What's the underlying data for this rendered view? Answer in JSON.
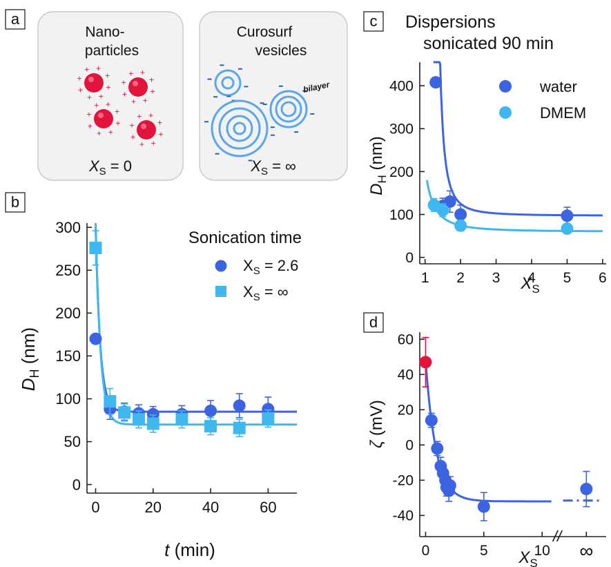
{
  "panel_labels": {
    "a": "a",
    "b": "b",
    "c": "c",
    "d": "d"
  },
  "panel_a": {
    "box1_title": [
      "Nano-",
      "particles"
    ],
    "box1_xs_label": "X",
    "box1_xs_sub": "S",
    "box1_xs_value": " = 0",
    "box2_title": [
      "Curosurf",
      "vesicles"
    ],
    "box2_bilayer": "bilayer",
    "box2_xs_label": "X",
    "box2_xs_sub": "S",
    "box2_xs_value": " = ∞",
    "colors": {
      "nanoparticle": "#e0143c",
      "charge_plus": "#e0143c",
      "vesicle": "#5aa6ea",
      "charge_minus": "#2a5fb0"
    }
  },
  "chart_data": [
    {
      "panel": "b",
      "type": "scatter",
      "legend_title": "Sonication time",
      "xlabel": "t (min)",
      "xlabel_italic": "t",
      "xlabel_unit": " (min)",
      "ylabel_main": "D",
      "ylabel_sub": "H",
      "ylabel_unit": " (nm)",
      "xlim": [
        -3,
        70
      ],
      "ylim": [
        -10,
        305
      ],
      "xticks": [
        0,
        20,
        40,
        60
      ],
      "yticks": [
        0,
        50,
        100,
        150,
        200,
        250,
        300
      ],
      "legend_position": "top-right",
      "series": [
        {
          "name": "X",
          "name_sub": "S",
          "name_value": " = 2.6",
          "marker": "circle",
          "color": "#3d64e0",
          "x": [
            0,
            5,
            10,
            15,
            20,
            30,
            40,
            50,
            60
          ],
          "y": [
            170,
            88,
            85,
            83,
            82,
            82,
            86,
            92,
            88
          ],
          "err": [
            5,
            12,
            10,
            10,
            9,
            10,
            12,
            14,
            14
          ],
          "fit": {
            "a": 85,
            "b": 215,
            "tau": 1.6
          }
        },
        {
          "name": "X",
          "name_sub": "S",
          "name_value": " = ∞",
          "marker": "square",
          "color": "#3fb8f0",
          "x": [
            0,
            5,
            10,
            15,
            20,
            30,
            40,
            50,
            60
          ],
          "y": [
            276,
            97,
            84,
            76,
            71,
            76,
            68,
            66,
            77
          ],
          "err": [
            20,
            15,
            10,
            10,
            10,
            10,
            10,
            10,
            10
          ],
          "fit": {
            "a": 70,
            "b": 235,
            "tau": 1.7
          }
        }
      ]
    },
    {
      "panel": "c",
      "type": "scatter",
      "title": [
        "Dispersions",
        "sonicated 90 min"
      ],
      "xlabel_main": "X",
      "xlabel_sub": "S",
      "ylabel_main": "D",
      "ylabel_sub": "H",
      "ylabel_unit": " (nm)",
      "xlim": [
        0.85,
        6.1
      ],
      "ylim": [
        -15,
        455
      ],
      "xticks": [
        1,
        2,
        3,
        4,
        5,
        6
      ],
      "yticks": [
        0,
        100,
        200,
        300,
        400
      ],
      "legend_position": "top-right",
      "series": [
        {
          "name": "water",
          "color": "#3d64e0",
          "x": [
            1.3,
            1.5,
            1.7,
            2.0,
            5.0
          ],
          "y": [
            408,
            120,
            130,
            100,
            97
          ],
          "err": [
            10,
            18,
            25,
            22,
            20
          ],
          "fit": {
            "a": 97,
            "b": 15,
            "x0": 1.2,
            "xs": 1.2
          }
        },
        {
          "name": "DMEM",
          "color": "#3fb8f0",
          "x": [
            1.25,
            1.5,
            2.0,
            5.0
          ],
          "y": [
            122,
            110,
            74,
            67
          ],
          "err": [
            15,
            15,
            12,
            8
          ],
          "fit": {
            "a": 60,
            "b": 30,
            "x0": 0.55,
            "xs": 1.0
          }
        }
      ]
    },
    {
      "panel": "d",
      "type": "scatter",
      "xlabel_main": "X",
      "xlabel_sub": "S",
      "ylabel_main": "ζ",
      "ylabel_unit": " (mV)",
      "xlim": [
        -0.5,
        15.5
      ],
      "ylim": [
        -52,
        64
      ],
      "xticks": [
        0,
        5,
        10
      ],
      "xtick_infinity": "∞",
      "break_mark": "//",
      "yticks": [
        -40,
        -20,
        0,
        20,
        40,
        60
      ],
      "series": [
        {
          "name": "",
          "color": "#3d64e0",
          "x": [
            0.5,
            1.0,
            1.3,
            1.5,
            1.7,
            1.8,
            2.0,
            2.1,
            5.0
          ],
          "y": [
            14,
            -2,
            -12,
            -16,
            -20,
            -24,
            -26,
            -23,
            -35
          ],
          "err": [
            4,
            4,
            5,
            5,
            5,
            5,
            6,
            5,
            8
          ],
          "fit": {
            "a": -32,
            "b": 80,
            "tau": 0.9
          }
        },
        {
          "name": "",
          "color": "#e0143c",
          "x": [
            0
          ],
          "y": [
            47
          ],
          "err": [
            14
          ]
        },
        {
          "name": "",
          "color": "#3d64e0",
          "x_label": "∞",
          "y": [
            -25
          ],
          "err": [
            10
          ]
        }
      ]
    }
  ]
}
